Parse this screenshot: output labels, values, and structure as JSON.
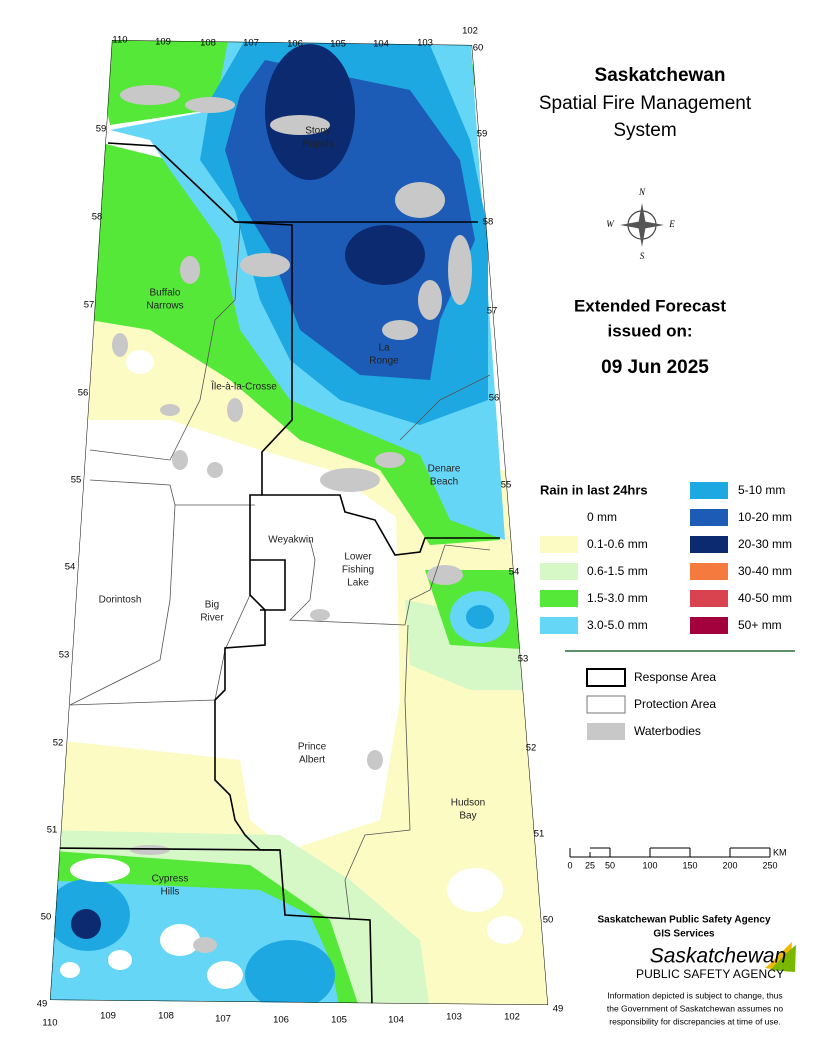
{
  "header": {
    "title": "Saskatchewan",
    "subtitle_lines": [
      "Spatial Fire Management",
      "System"
    ]
  },
  "forecast": {
    "heading_lines": [
      "Extended Forecast",
      "issued on:"
    ],
    "date": "09 Jun 2025"
  },
  "compass": [
    "N",
    "E",
    "S",
    "W"
  ],
  "rain_legend": {
    "title": "Rain in last 24hrs",
    "items": [
      {
        "label": "0 mm",
        "color": "#ffffff"
      },
      {
        "label": "0.1-0.6 mm",
        "color": "#fdfbc4"
      },
      {
        "label": "0.6-1.5 mm",
        "color": "#d6f7c6"
      },
      {
        "label": "1.5-3.0 mm",
        "color": "#55e838"
      },
      {
        "label": "3.0-5.0 mm",
        "color": "#66d6f6"
      },
      {
        "label": "5-10 mm",
        "color": "#1ea8e2"
      },
      {
        "label": "10-20 mm",
        "color": "#1c5cb6"
      },
      {
        "label": "20-30 mm",
        "color": "#0b2a70"
      },
      {
        "label": "30-40 mm",
        "color": "#f47a3e"
      },
      {
        "label": "40-50 mm",
        "color": "#d9434f"
      },
      {
        "label": "50+ mm",
        "color": "#a3003e"
      }
    ]
  },
  "boundary_legend": {
    "items": [
      {
        "label": "Response Area"
      },
      {
        "label": "Protection Area"
      },
      {
        "label": "Waterbodies"
      }
    ]
  },
  "scale_bar": {
    "ticks": [
      "0",
      "25",
      "50",
      "100",
      "150",
      "200",
      "250"
    ],
    "unit": "KM"
  },
  "map": {
    "places": [
      {
        "lines": [
          "Stony",
          "Rapids"
        ]
      },
      {
        "lines": [
          "Buffalo",
          "Narrows"
        ]
      },
      {
        "lines": [
          "Île-à-la-Crosse"
        ]
      },
      {
        "lines": [
          "La",
          "Ronge"
        ]
      },
      {
        "lines": [
          "Denare",
          "Beach"
        ]
      },
      {
        "lines": [
          "Weyakwin"
        ]
      },
      {
        "lines": [
          "Lower",
          "Fishing",
          "Lake"
        ]
      },
      {
        "lines": [
          "Dorintosh"
        ]
      },
      {
        "lines": [
          "Big",
          "River"
        ]
      },
      {
        "lines": [
          "Prince",
          "Albert"
        ]
      },
      {
        "lines": [
          "Hudson",
          "Bay"
        ]
      },
      {
        "lines": [
          "Cypress",
          "Hills"
        ]
      }
    ],
    "graticule": {
      "top": [
        "110",
        "109",
        "108",
        "107",
        "106",
        "105",
        "104",
        "103",
        "102"
      ],
      "bottom": [
        "110",
        "109",
        "108",
        "107",
        "106",
        "105",
        "104",
        "103",
        "102"
      ],
      "left": [
        "59",
        "58",
        "57",
        "56",
        "55",
        "54",
        "53",
        "52",
        "51",
        "50",
        "49"
      ],
      "right": [
        "60",
        "59",
        "58",
        "57",
        "56",
        "55",
        "54",
        "53",
        "52",
        "51",
        "50",
        "49"
      ]
    }
  },
  "footer": {
    "agency": "Saskatchewan Public Safety Agency",
    "unit": "GIS  Services",
    "logo": [
      "Saskatchewan",
      "PUBLIC SAFETY AGENCY"
    ],
    "disclaimer": [
      "Information depicted is subject to change, thus",
      "the Government of Saskatchewan assumes no",
      "responsibility for discrepancies at time of use."
    ]
  }
}
